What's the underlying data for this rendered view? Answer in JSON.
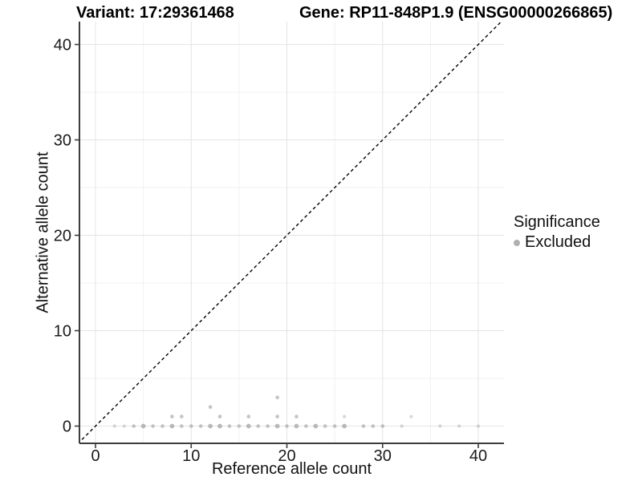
{
  "chart_data": {
    "type": "scatter",
    "title_left": "Variant: 17:29361468",
    "title_right": "Gene: RP11-848P1.9 (ENSG00000266865)",
    "xlabel": "Reference allele count",
    "ylabel": "Alternative allele count",
    "xlim": [
      -2,
      42
    ],
    "ylim": [
      -2,
      42
    ],
    "xticks": [
      0,
      10,
      20,
      30,
      40
    ],
    "yticks": [
      0,
      10,
      20,
      30,
      40
    ],
    "grid": {
      "major": [
        0,
        10,
        20,
        30,
        40
      ],
      "minor": [
        5,
        15,
        25,
        35
      ],
      "major_color": "#e4e4e4",
      "minor_color": "#f1f1f1"
    },
    "identity_line": {
      "equation": "y = x",
      "style": "dashed",
      "color": "#000000"
    },
    "legend": {
      "title": "Significance",
      "position": "right",
      "items": [
        {
          "label": "Excluded",
          "color": "#b0b0b0"
        }
      ]
    },
    "point_color": "#a0a0a0",
    "point_styles": {
      "0": {
        "r": 2.3,
        "alpha": 0.62
      },
      "1": {
        "r": 2.9,
        "alpha": 0.72
      },
      "2": {
        "r": 2.1,
        "alpha": 0.4
      }
    },
    "series": [
      {
        "name": "Excluded",
        "points": [
          [
            2,
            0,
            2
          ],
          [
            3,
            0,
            2
          ],
          [
            4,
            0,
            0
          ],
          [
            5,
            0,
            1
          ],
          [
            6,
            0,
            0
          ],
          [
            7,
            0,
            0
          ],
          [
            8,
            0,
            1
          ],
          [
            9,
            0,
            0
          ],
          [
            10,
            0,
            0
          ],
          [
            11,
            0,
            0
          ],
          [
            12,
            0,
            1
          ],
          [
            13,
            0,
            1
          ],
          [
            14,
            0,
            0
          ],
          [
            15,
            0,
            0
          ],
          [
            16,
            0,
            1
          ],
          [
            17,
            0,
            0
          ],
          [
            18,
            0,
            0
          ],
          [
            19,
            0,
            1
          ],
          [
            20,
            0,
            0
          ],
          [
            21,
            0,
            1
          ],
          [
            22,
            0,
            0
          ],
          [
            23,
            0,
            1
          ],
          [
            24,
            0,
            0
          ],
          [
            25,
            0,
            0
          ],
          [
            26,
            0,
            1
          ],
          [
            28,
            0,
            0
          ],
          [
            29,
            0,
            0
          ],
          [
            30,
            0,
            0
          ],
          [
            32,
            0,
            2
          ],
          [
            36,
            0,
            2
          ],
          [
            38,
            0,
            2
          ],
          [
            40,
            0,
            2
          ],
          [
            8,
            1,
            0
          ],
          [
            9,
            1,
            0
          ],
          [
            13,
            1,
            0
          ],
          [
            16,
            1,
            0
          ],
          [
            19,
            1,
            0
          ],
          [
            21,
            1,
            0
          ],
          [
            26,
            1,
            2
          ],
          [
            33,
            1,
            2
          ],
          [
            12,
            2,
            0
          ],
          [
            19,
            3,
            0
          ]
        ]
      }
    ]
  }
}
